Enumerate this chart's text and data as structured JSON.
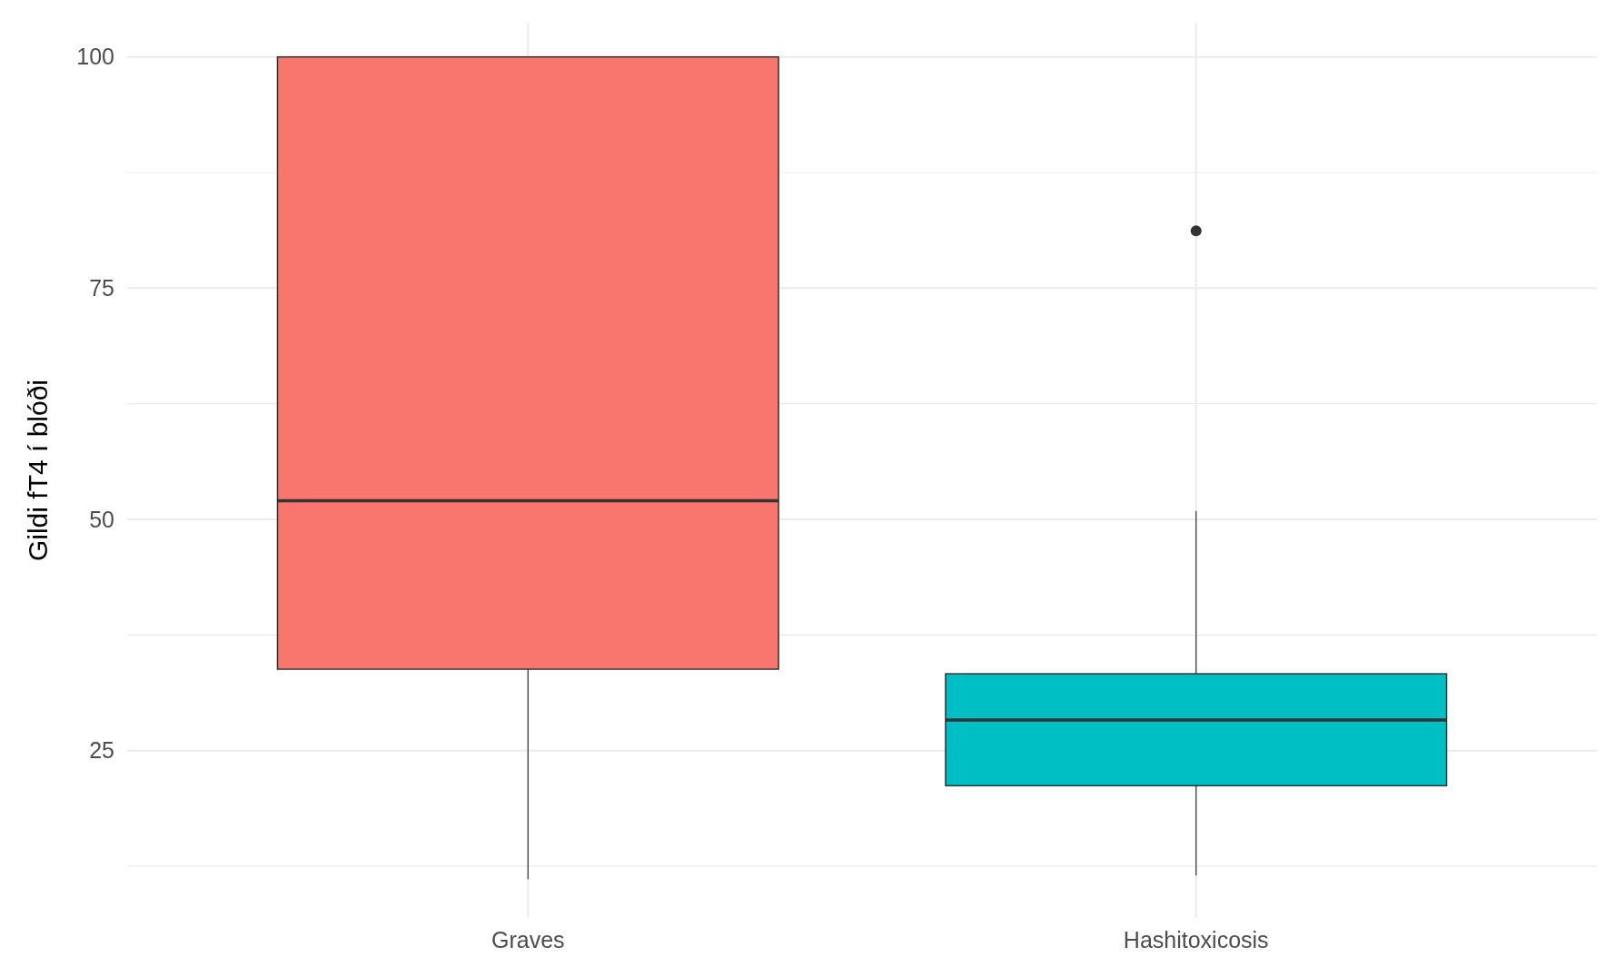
{
  "chart_data": {
    "type": "box",
    "ylabel": "Gildi fT4 í blóði",
    "categories": [
      "Graves",
      "Hashitoxicosis"
    ],
    "colors": [
      "#f8766d",
      "#00bfc4"
    ],
    "boxes": [
      {
        "low": 11.1,
        "q1": 33.8,
        "median": 52,
        "q3": 100,
        "high": 100
      },
      {
        "low": 11.5,
        "q1": 21.2,
        "median": 28.3,
        "q3": 33.3,
        "high": 50.9,
        "outliers": [
          81.2
        ]
      }
    ],
    "ylim": [
      6.9,
      103.7
    ],
    "yticks": [
      {
        "value": 12.5,
        "label": null
      },
      25,
      {
        "value": 37.5,
        "label": null
      },
      50,
      {
        "value": 62.5,
        "label": null
      },
      75,
      {
        "value": 87.5,
        "label": null
      },
      100
    ],
    "grid": true
  }
}
